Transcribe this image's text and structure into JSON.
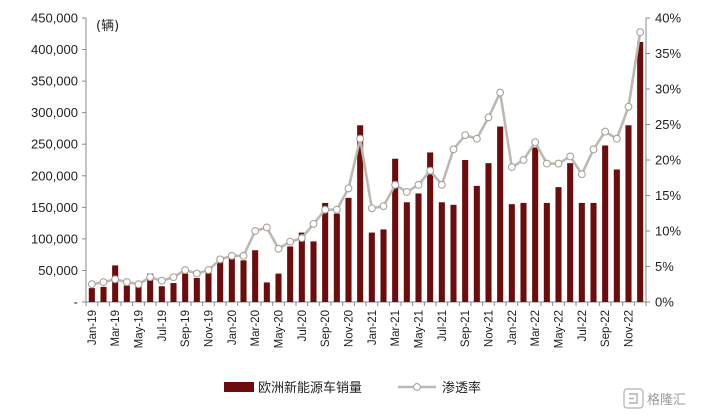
{
  "chart_data": {
    "type": "bar",
    "unit_label": "(辆)",
    "categories": [
      "Jan-19",
      "Feb-19",
      "Mar-19",
      "Apr-19",
      "May-19",
      "Jun-19",
      "Jul-19",
      "Aug-19",
      "Sep-19",
      "Oct-19",
      "Nov-19",
      "Dec-19",
      "Jan-20",
      "Feb-20",
      "Mar-20",
      "Apr-20",
      "May-20",
      "Jun-20",
      "Jul-20",
      "Aug-20",
      "Sep-20",
      "Oct-20",
      "Nov-20",
      "Dec-20",
      "Jan-21",
      "Feb-21",
      "Mar-21",
      "Apr-21",
      "May-21",
      "Jun-21",
      "Jul-21",
      "Aug-21",
      "Sep-21",
      "Oct-21",
      "Nov-21",
      "Dec-21",
      "Jan-22",
      "Feb-22",
      "Mar-22",
      "Apr-22",
      "May-22",
      "Jun-22",
      "Jul-22",
      "Aug-22",
      "Sep-22",
      "Oct-22",
      "Nov-22",
      "Dec-22"
    ],
    "x_tick_labels": [
      "Jan-19",
      "Mar-19",
      "May-19",
      "Jul-19",
      "Sep-19",
      "Nov-19",
      "Jan-20",
      "Mar-20",
      "May-20",
      "Jul-20",
      "Sep-20",
      "Nov-20",
      "Jan-21",
      "Mar-21",
      "May-21",
      "Jul-21",
      "Sep-21",
      "Nov-21",
      "Jan-22",
      "Mar-22",
      "May-22",
      "Jul-22",
      "Sep-22",
      "Nov-22"
    ],
    "y_left": {
      "min": 0,
      "max": 450000,
      "step": 50000,
      "tick_labels": [
        "-",
        "50,000",
        "100,000",
        "150,000",
        "200,000",
        "250,000",
        "300,000",
        "350,000",
        "400,000",
        "450,000"
      ]
    },
    "y_right": {
      "min": 0,
      "max": 40,
      "step": 5,
      "tick_labels": [
        "0%",
        "5%",
        "10%",
        "15%",
        "20%",
        "25%",
        "30%",
        "35%",
        "40%"
      ]
    },
    "series": [
      {
        "name": "欧洲新能源车销量",
        "kind": "bar",
        "axis": "left",
        "color": "#6d0c0c",
        "values": [
          22000,
          24000,
          58000,
          26000,
          26000,
          45000,
          25000,
          30000,
          45000,
          38000,
          46000,
          72000,
          70000,
          66000,
          82000,
          31000,
          45000,
          88000,
          110000,
          96000,
          157000,
          140000,
          165000,
          280000,
          110000,
          115000,
          227000,
          158000,
          172000,
          237000,
          158000,
          154000,
          225000,
          184000,
          220000,
          278000,
          155000,
          157000,
          245000,
          157000,
          182000,
          220000,
          157000,
          157000,
          248000,
          210000,
          280000,
          412000
        ]
      },
      {
        "name": "渗透率",
        "kind": "line",
        "axis": "right",
        "color": "#bdb8b1",
        "values": [
          2.5,
          2.8,
          3.2,
          2.8,
          2.5,
          3.5,
          3.0,
          3.5,
          4.5,
          4.0,
          4.5,
          6.0,
          6.5,
          6.5,
          10.0,
          10.5,
          7.5,
          8.5,
          9.0,
          11.0,
          13.0,
          13.0,
          16.0,
          23.0,
          13.2,
          13.5,
          16.5,
          15.5,
          16.5,
          18.5,
          16.5,
          21.5,
          23.5,
          23.0,
          26.0,
          29.5,
          19.0,
          20.0,
          22.5,
          19.5,
          19.5,
          20.5,
          18.0,
          21.5,
          24.0,
          23.0,
          27.5,
          38.0
        ]
      }
    ],
    "legend": {
      "placement": "bottom-center"
    }
  },
  "watermark": {
    "text": "格隆汇"
  }
}
